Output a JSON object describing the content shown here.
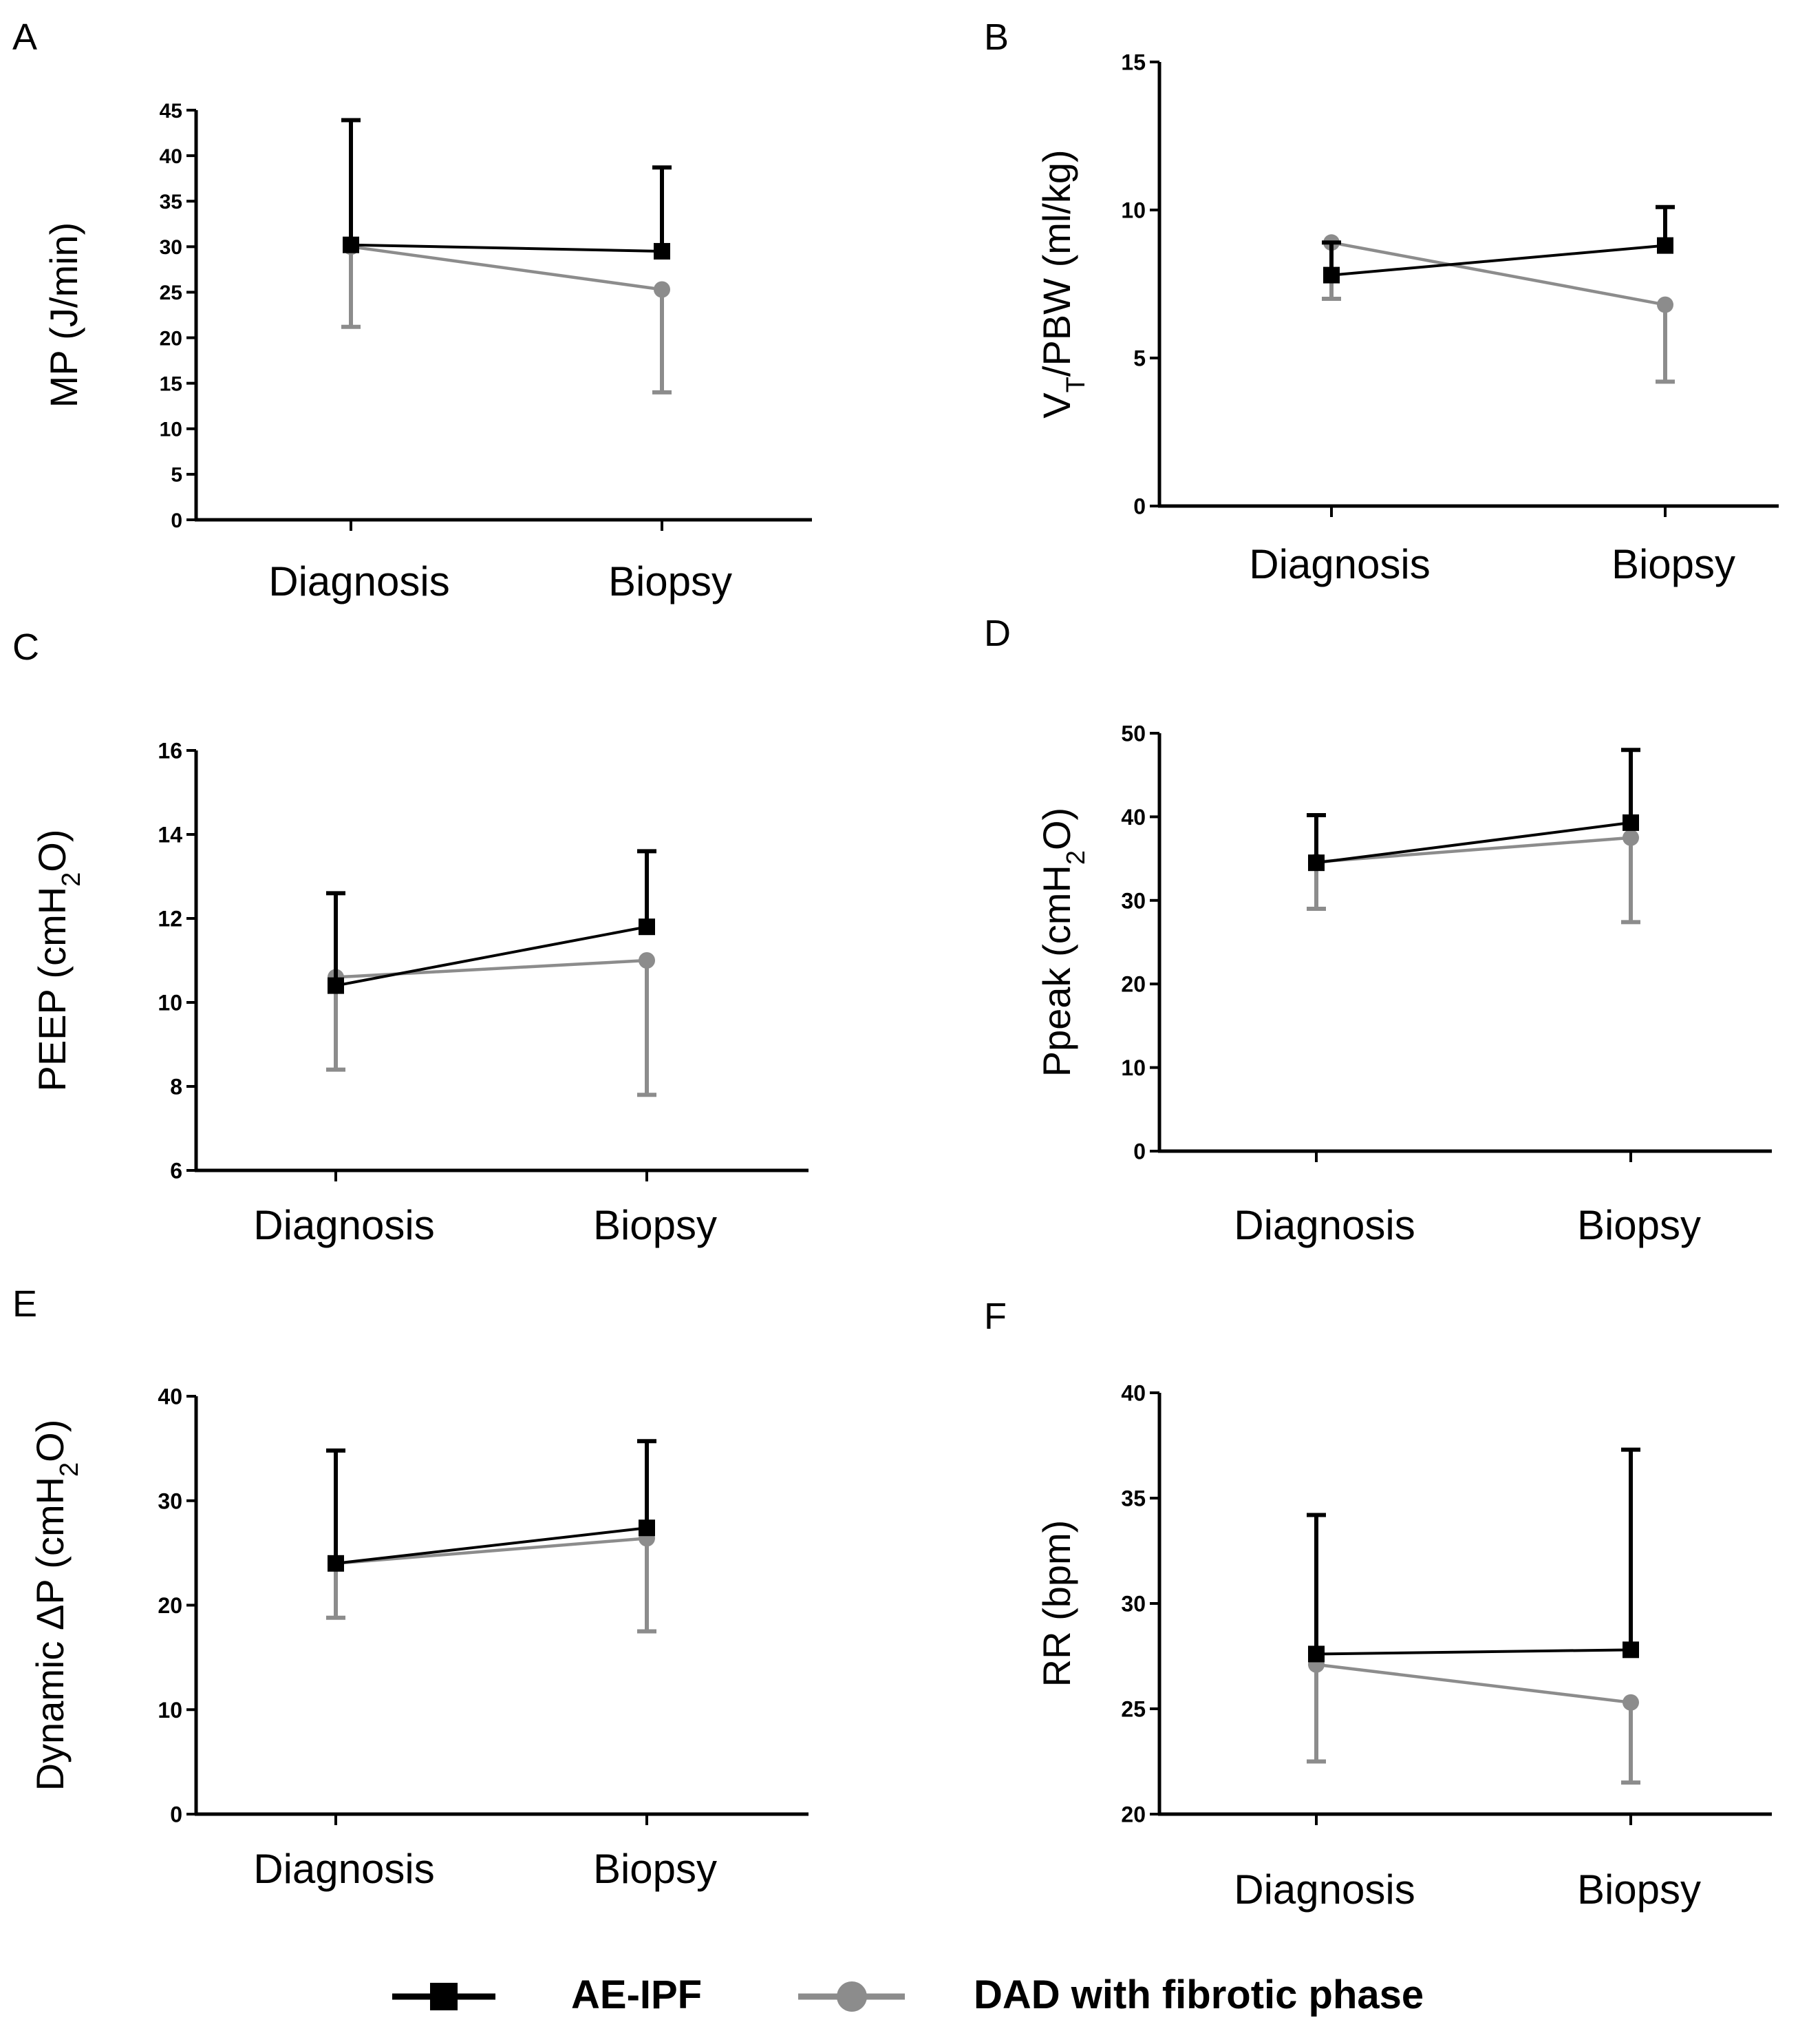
{
  "legend": {
    "items": [
      {
        "label": "AE-IPF",
        "color": "#000000",
        "marker": "square"
      },
      {
        "label": "DAD with fibrotic phase",
        "color": "#8c8c8c",
        "marker": "circle"
      }
    ]
  },
  "chart_data": [
    {
      "panel": "A",
      "type": "line",
      "ylabel": "MP (J/min)",
      "categories": [
        "Diagnosis",
        "Biopsy"
      ],
      "ylim": [
        0,
        45
      ],
      "yticks": [
        0,
        5,
        10,
        15,
        20,
        25,
        30,
        35,
        40,
        45
      ],
      "series": [
        {
          "name": "AE-IPF",
          "values": [
            30.2,
            29.5
          ],
          "error": [
            13.7,
            9.2
          ],
          "error_dir": "up"
        },
        {
          "name": "DAD with fibrotic phase",
          "values": [
            30.0,
            25.3
          ],
          "error": [
            8.8,
            11.3
          ],
          "error_dir": "down"
        }
      ]
    },
    {
      "panel": "B",
      "type": "line",
      "ylabel": "VT/PBW (ml/kg)",
      "categories": [
        "Diagnosis",
        "Biopsy"
      ],
      "ylim": [
        0,
        15
      ],
      "yticks": [
        0,
        5,
        10,
        15
      ],
      "series": [
        {
          "name": "AE-IPF",
          "values": [
            7.8,
            8.8
          ],
          "error": [
            1.1,
            1.3
          ],
          "error_dir": "up"
        },
        {
          "name": "DAD with fibrotic phase",
          "values": [
            8.9,
            6.8
          ],
          "error": [
            1.9,
            2.6
          ],
          "error_dir": "down"
        }
      ]
    },
    {
      "panel": "C",
      "type": "line",
      "ylabel": "PEEP (cmH2O)",
      "categories": [
        "Diagnosis",
        "Biopsy"
      ],
      "ylim": [
        6,
        16
      ],
      "yticks": [
        6,
        8,
        10,
        12,
        14,
        16
      ],
      "series": [
        {
          "name": "AE-IPF",
          "values": [
            10.4,
            11.8
          ],
          "error": [
            2.2,
            1.8
          ],
          "error_dir": "up"
        },
        {
          "name": "DAD with fibrotic phase",
          "values": [
            10.6,
            11.0
          ],
          "error": [
            2.2,
            3.2
          ],
          "error_dir": "down"
        }
      ]
    },
    {
      "panel": "D",
      "type": "line",
      "ylabel": "Ppeak (cmH2O)",
      "categories": [
        "Diagnosis",
        "Biopsy"
      ],
      "ylim": [
        0,
        50
      ],
      "yticks": [
        0,
        10,
        20,
        30,
        40,
        50
      ],
      "series": [
        {
          "name": "AE-IPF",
          "values": [
            34.5,
            39.3
          ],
          "error": [
            5.7,
            8.7
          ],
          "error_dir": "up"
        },
        {
          "name": "DAD with fibrotic phase",
          "values": [
            34.6,
            37.5
          ],
          "error": [
            5.6,
            10.1
          ],
          "error_dir": "down"
        }
      ]
    },
    {
      "panel": "E",
      "type": "line",
      "ylabel": "Dynamic ΔP (cmH2O)",
      "categories": [
        "Diagnosis",
        "Biopsy"
      ],
      "ylim": [
        0,
        40
      ],
      "yticks": [
        0,
        10,
        20,
        30,
        40
      ],
      "series": [
        {
          "name": "AE-IPF",
          "values": [
            24.0,
            27.4
          ],
          "error": [
            10.8,
            8.3
          ],
          "error_dir": "up"
        },
        {
          "name": "DAD with fibrotic phase",
          "values": [
            24.0,
            26.4
          ],
          "error": [
            5.2,
            8.9
          ],
          "error_dir": "down"
        }
      ]
    },
    {
      "panel": "F",
      "type": "line",
      "ylabel": "RR (bpm)",
      "categories": [
        "Diagnosis",
        "Biopsy"
      ],
      "ylim": [
        20,
        40
      ],
      "yticks": [
        20,
        25,
        30,
        35,
        40
      ],
      "series": [
        {
          "name": "AE-IPF",
          "values": [
            27.6,
            27.8
          ],
          "error": [
            6.6,
            9.5
          ],
          "error_dir": "up"
        },
        {
          "name": "DAD with fibrotic phase",
          "values": [
            27.1,
            25.3
          ],
          "error": [
            4.6,
            3.8
          ],
          "error_dir": "down"
        }
      ]
    }
  ]
}
